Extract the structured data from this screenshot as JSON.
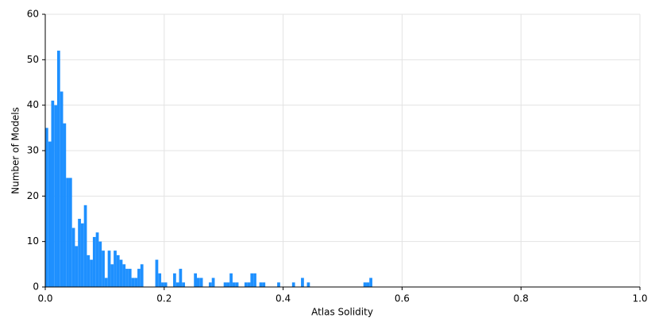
{
  "chart_data": {
    "type": "histogram",
    "xlabel": "Atlas Solidity",
    "ylabel": "Number of Models",
    "bins": [
      0,
      0.005,
      0.01,
      0.015,
      0.02,
      0.025,
      0.03,
      0.035,
      0.04,
      0.045,
      0.05,
      0.055,
      0.06,
      0.065,
      0.07,
      0.075,
      0.08,
      0.085,
      0.09,
      0.095,
      0.1,
      0.105,
      0.11,
      0.115,
      0.12,
      0.125,
      0.13,
      0.135,
      0.14,
      0.145,
      0.15,
      0.155,
      0.16,
      0.165,
      0.17,
      0.175,
      0.18,
      0.185,
      0.19,
      0.195,
      0.2,
      0.205,
      0.21,
      0.215,
      0.22,
      0.225,
      0.23,
      0.235,
      0.24,
      0.245,
      0.25,
      0.255,
      0.26,
      0.265,
      0.27,
      0.275,
      0.28,
      0.285,
      0.29,
      0.295,
      0.3,
      0.305,
      0.31,
      0.315,
      0.32,
      0.325,
      0.33,
      0.335,
      0.34,
      0.345,
      0.35,
      0.355,
      0.36,
      0.365,
      0.37,
      0.375,
      0.38,
      0.385,
      0.39,
      0.395,
      0.4,
      0.405,
      0.41,
      0.415,
      0.42,
      0.425,
      0.43,
      0.435,
      0.44,
      0.445,
      0.45,
      0.455,
      0.46,
      0.465,
      0.47,
      0.475,
      0.48,
      0.485,
      0.49,
      0.495,
      0.5,
      0.505,
      0.51,
      0.515,
      0.52,
      0.525,
      0.53,
      0.535,
      0.54,
      0.545,
      0.55
    ],
    "values": [
      35,
      32,
      41,
      40,
      52,
      43,
      36,
      24,
      24,
      13,
      9,
      15,
      14,
      18,
      7,
      6,
      11,
      12,
      10,
      8,
      2,
      8,
      5,
      8,
      7,
      6,
      5,
      4,
      4,
      2,
      2,
      4,
      5,
      0,
      0,
      0,
      0,
      6,
      3,
      1,
      1,
      0,
      0,
      3,
      1,
      4,
      1,
      0,
      0,
      0,
      3,
      2,
      2,
      0,
      0,
      1,
      2,
      0,
      0,
      0,
      1,
      1,
      3,
      1,
      1,
      0,
      0,
      1,
      1,
      3,
      3,
      0,
      1,
      1,
      0,
      0,
      0,
      0,
      1,
      0,
      0,
      0,
      0,
      1,
      0,
      0,
      2,
      0,
      1,
      0,
      0,
      0,
      0,
      0,
      0,
      0,
      0,
      0,
      0,
      0,
      0,
      0,
      0,
      0,
      0,
      0,
      0,
      1,
      1,
      2
    ],
    "color": "#1e90ff",
    "xlim": [
      0,
      1
    ],
    "xticks": [
      {
        "value": 0,
        "label": "0.0"
      },
      0.2,
      0.4,
      0.6,
      0.8,
      {
        "value": 1,
        "label": "1.0"
      }
    ],
    "ylim": [
      0,
      60
    ],
    "yticks": [
      0,
      10,
      20,
      30,
      40,
      50,
      60
    ],
    "grid": true
  }
}
